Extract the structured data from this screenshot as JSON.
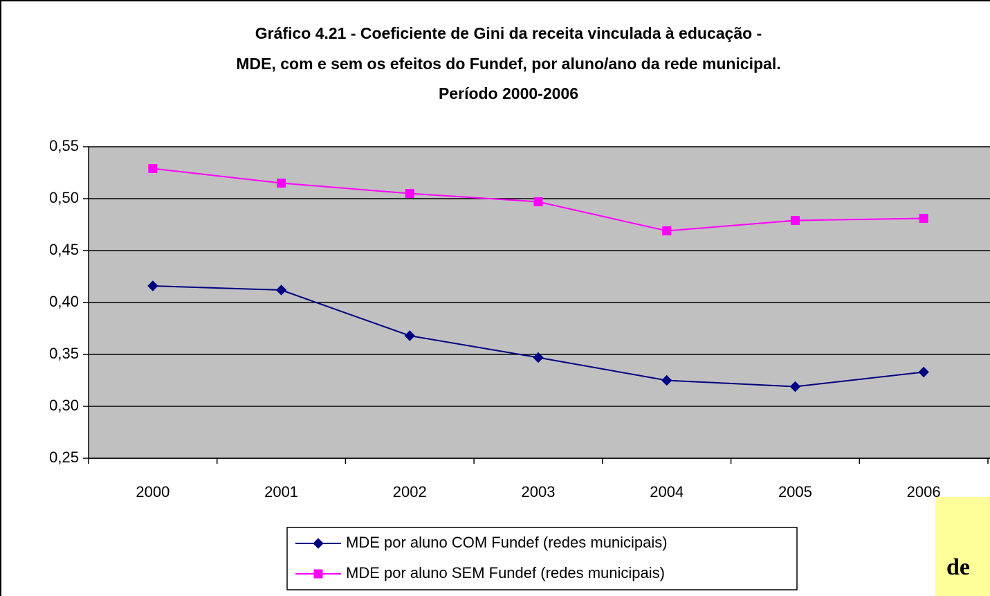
{
  "chart_data": {
    "type": "line",
    "title": [
      "Gráfico 4.21 - Coeficiente de Gini da receita vinculada à educação -",
      "MDE, com e sem os efeitos do Fundef, por aluno/ano da rede municipal.",
      "Período 2000-2006"
    ],
    "categories": [
      "2000",
      "2001",
      "2002",
      "2003",
      "2004",
      "2005",
      "2006"
    ],
    "series": [
      {
        "name": "MDE por aluno COM Fundef (redes municipais)",
        "color": "#000080",
        "marker": "diamond",
        "values": [
          0.416,
          0.412,
          0.368,
          0.347,
          0.325,
          0.319,
          0.333
        ]
      },
      {
        "name": "MDE por aluno SEM Fundef (redes municipais)",
        "color": "#ff00ff",
        "marker": "square",
        "values": [
          0.529,
          0.515,
          0.505,
          0.497,
          0.469,
          0.479,
          0.481
        ]
      }
    ],
    "ylim": [
      0.25,
      0.55
    ],
    "yticks": [
      {
        "value": 0.25,
        "label": "0,25"
      },
      {
        "value": 0.3,
        "label": "0,30"
      },
      {
        "value": 0.35,
        "label": "0,35"
      },
      {
        "value": 0.4,
        "label": "0,40"
      },
      {
        "value": 0.45,
        "label": "0,45"
      },
      {
        "value": 0.5,
        "label": "0,50"
      },
      {
        "value": 0.55,
        "label": "0,55"
      }
    ],
    "grid": true,
    "plot_background": "#c0c0c0",
    "annotation": "de"
  }
}
